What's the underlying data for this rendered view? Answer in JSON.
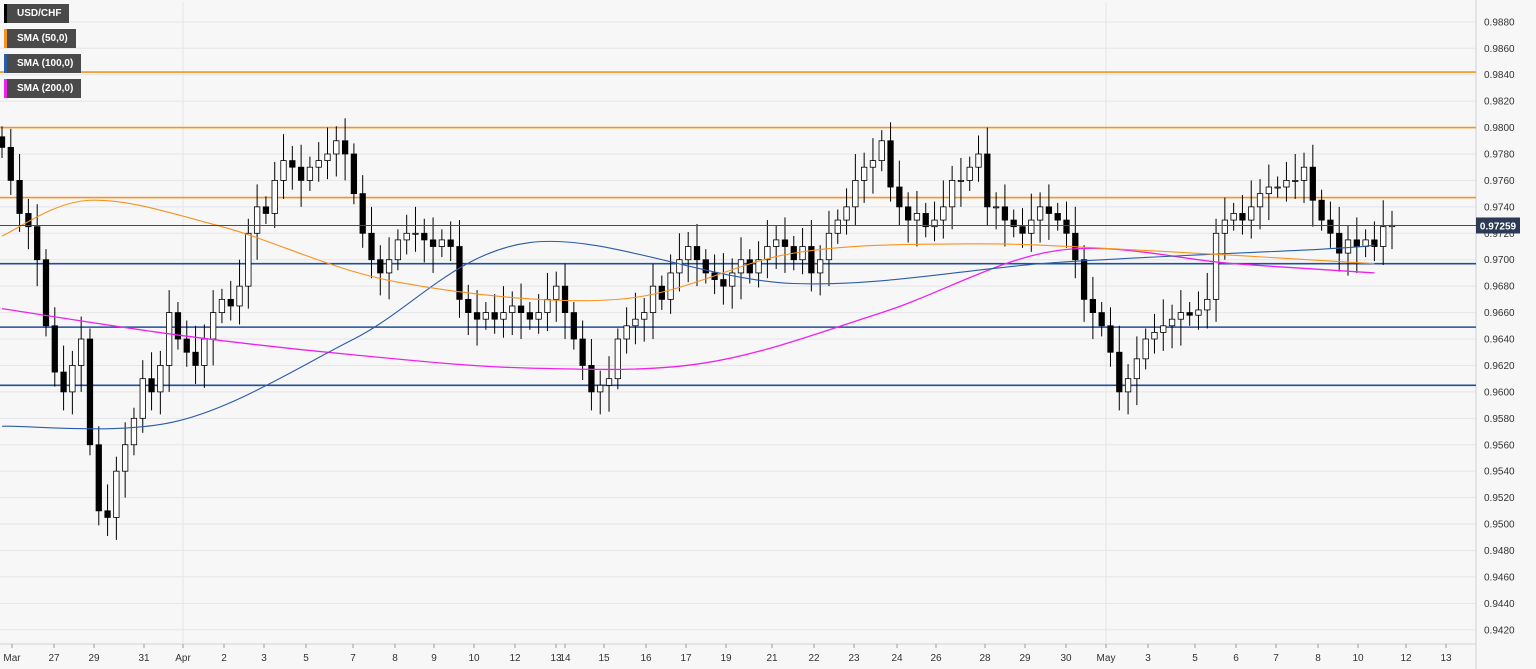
{
  "legend": {
    "items": [
      {
        "label": "USD/CHF",
        "color": "#111111"
      },
      {
        "label": "SMA (50,0)",
        "color": "#f7931e"
      },
      {
        "label": "SMA (100,0)",
        "color": "#2a5caa"
      },
      {
        "label": "SMA (200,0)",
        "color": "#ee22ee"
      }
    ]
  },
  "price_tag": "0.97259",
  "colors": {
    "background": "#f7f7f8",
    "grid": "#e4e6ea",
    "bull_fill": "#ffffff",
    "bear_fill": "#000000",
    "candle_outline": "#000000",
    "resistance": "#f7931e",
    "support": "#1f4e9c",
    "sma50": "#f7931e",
    "sma100": "#2a5caa",
    "sma200": "#ee22ee",
    "price_line": "#4a4a4a"
  },
  "chart_data": {
    "type": "candlestick",
    "symbol": "USD/CHF",
    "ylim": [
      0.941,
      0.9895
    ],
    "y_ticks": [
      "0.9880",
      "0.9860",
      "0.9840",
      "0.9820",
      "0.9800",
      "0.9780",
      "0.9760",
      "0.9740",
      "0.9720",
      "0.9700",
      "0.9680",
      "0.9660",
      "0.9640",
      "0.9620",
      "0.9600",
      "0.9580",
      "0.9560",
      "0.9540",
      "0.9520",
      "0.9500",
      "0.9480",
      "0.9460",
      "0.9440",
      "0.9420"
    ],
    "x_labels": [
      "Mar",
      "27",
      "29",
      "31",
      "Apr",
      "2",
      "3",
      "5",
      "7",
      "8",
      "9",
      "10",
      "12",
      "13",
      "14",
      "15",
      "16",
      "17",
      "19",
      "21",
      "22",
      "23",
      "24",
      "26",
      "28",
      "29",
      "30",
      "May",
      "3",
      "5",
      "6",
      "7",
      "8",
      "10",
      "12",
      "13"
    ],
    "last_price": 0.97259,
    "horizontal_levels": {
      "resistance": [
        0.9842,
        0.98,
        0.9747
      ],
      "support": [
        0.9697,
        0.9649,
        0.9605
      ]
    },
    "closes": [
      0.9785,
      0.976,
      0.9735,
      0.9725,
      0.97,
      0.965,
      0.9615,
      0.96,
      0.962,
      0.964,
      0.956,
      0.951,
      0.9505,
      0.954,
      0.956,
      0.958,
      0.961,
      0.96,
      0.962,
      0.966,
      0.964,
      0.963,
      0.962,
      0.964,
      0.966,
      0.967,
      0.9665,
      0.968,
      0.972,
      0.974,
      0.9735,
      0.976,
      0.9775,
      0.977,
      0.976,
      0.977,
      0.9775,
      0.978,
      0.979,
      0.978,
      0.975,
      0.972,
      0.97,
      0.969,
      0.97,
      0.9715,
      0.972,
      0.972,
      0.9715,
      0.971,
      0.9715,
      0.971,
      0.967,
      0.966,
      0.9655,
      0.966,
      0.9655,
      0.966,
      0.9665,
      0.966,
      0.9655,
      0.966,
      0.967,
      0.968,
      0.966,
      0.964,
      0.962,
      0.96,
      0.9605,
      0.961,
      0.964,
      0.965,
      0.9655,
      0.966,
      0.968,
      0.967,
      0.969,
      0.97,
      0.971,
      0.97,
      0.969,
      0.9685,
      0.968,
      0.969,
      0.97,
      0.969,
      0.97,
      0.971,
      0.9715,
      0.971,
      0.97,
      0.971,
      0.969,
      0.97,
      0.972,
      0.973,
      0.974,
      0.976,
      0.977,
      0.9775,
      0.979,
      0.9755,
      0.974,
      0.973,
      0.9735,
      0.9725,
      0.973,
      0.974,
      0.976,
      0.976,
      0.977,
      0.978,
      0.974,
      0.974,
      0.973,
      0.9725,
      0.972,
      0.973,
      0.974,
      0.9735,
      0.973,
      0.972,
      0.97,
      0.967,
      0.966,
      0.965,
      0.963,
      0.96,
      0.961,
      0.9625,
      0.964,
      0.9645,
      0.965,
      0.9655,
      0.966,
      0.9658,
      0.9662,
      0.967,
      0.972,
      0.973,
      0.9735,
      0.973,
      0.974,
      0.975,
      0.9755,
      0.9755,
      0.976,
      0.976,
      0.977,
      0.9745,
      0.973,
      0.972,
      0.9705,
      0.9715,
      0.971,
      0.9715,
      0.971,
      0.9725,
      0.9726
    ],
    "sma50": [
      [
        0,
        0.9718
      ],
      [
        10,
        0.9745
      ],
      [
        25,
        0.9725
      ],
      [
        45,
        0.9683
      ],
      [
        70,
        0.967
      ],
      [
        90,
        0.9705
      ],
      [
        110,
        0.9712
      ],
      [
        130,
        0.9707
      ],
      [
        156,
        0.9697
      ]
    ],
    "sma100": [
      [
        0,
        0.9574
      ],
      [
        20,
        0.9578
      ],
      [
        40,
        0.964
      ],
      [
        60,
        0.9713
      ],
      [
        90,
        0.9682
      ],
      [
        120,
        0.9698
      ],
      [
        150,
        0.9708
      ],
      [
        156,
        0.9711
      ]
    ],
    "sma200": [
      [
        0,
        0.9663
      ],
      [
        20,
        0.9643
      ],
      [
        40,
        0.9628
      ],
      [
        60,
        0.9618
      ],
      [
        80,
        0.9622
      ],
      [
        100,
        0.966
      ],
      [
        120,
        0.9707
      ],
      [
        140,
        0.9697
      ],
      [
        156,
        0.969
      ]
    ]
  }
}
